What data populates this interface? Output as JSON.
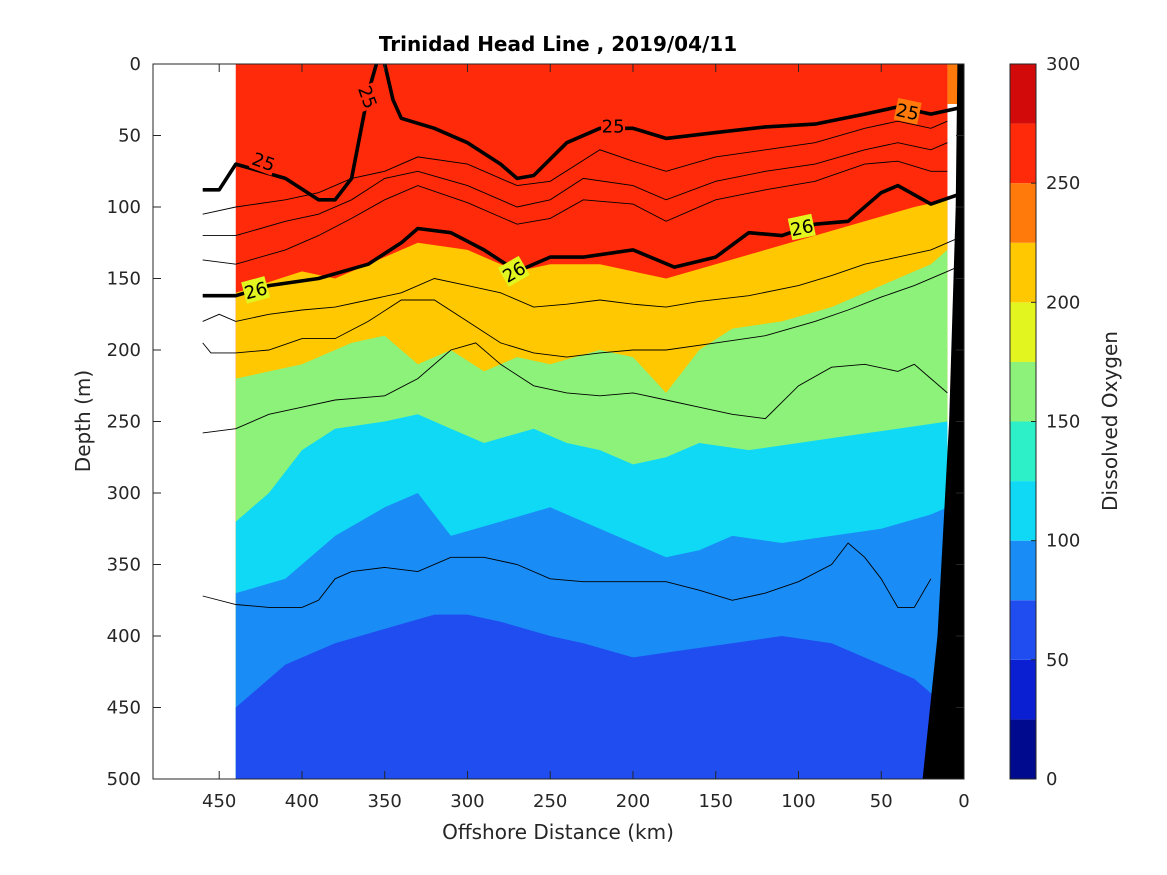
{
  "chart_data": {
    "type": "heatmap",
    "title": "Trinidad Head Line , 2019/04/11",
    "xlabel": "Offshore Distance (km)",
    "ylabel": "Depth (m)",
    "xlim": [
      490,
      0
    ],
    "ylim": [
      0,
      500
    ],
    "x_reversed": true,
    "y_reversed": true,
    "xticks": [
      "450",
      "400",
      "350",
      "300",
      "250",
      "200",
      "150",
      "100",
      "50",
      "0"
    ],
    "yticks": [
      "0",
      "50",
      "100",
      "150",
      "200",
      "250",
      "300",
      "350",
      "400",
      "450",
      "500"
    ],
    "colorbar": {
      "label": "Dissolved Oxygen",
      "range": [
        0,
        300
      ],
      "ticks": [
        "0",
        "50",
        "100",
        "150",
        "200",
        "250",
        "300"
      ],
      "levels": [
        {
          "from": 0,
          "to": 25,
          "color": "#000a8f"
        },
        {
          "from": 25,
          "to": 50,
          "color": "#0a1ed2"
        },
        {
          "from": 50,
          "to": 75,
          "color": "#1f4df0"
        },
        {
          "from": 75,
          "to": 100,
          "color": "#1a8cf5"
        },
        {
          "from": 100,
          "to": 125,
          "color": "#0fd9f5"
        },
        {
          "from": 125,
          "to": 150,
          "color": "#2ef0c8"
        },
        {
          "from": 150,
          "to": 175,
          "color": "#8cf27a"
        },
        {
          "from": 175,
          "to": 200,
          "color": "#e2f51f"
        },
        {
          "from": 200,
          "to": 225,
          "color": "#ffc800"
        },
        {
          "from": 225,
          "to": 250,
          "color": "#ff7a0a"
        },
        {
          "from": 250,
          "to": 275,
          "color": "#ff2a0a"
        },
        {
          "from": 275,
          "to": 300,
          "color": "#d20a0a"
        }
      ]
    },
    "data_x_extent": [
      440,
      10
    ],
    "field_boundaries": [
      {
        "level": 200,
        "depth_at_x": [
          [
            440,
            160
          ],
          [
            400,
            145
          ],
          [
            380,
            150
          ],
          [
            360,
            140
          ],
          [
            330,
            125
          ],
          [
            300,
            130
          ],
          [
            270,
            145
          ],
          [
            250,
            140
          ],
          [
            220,
            140
          ],
          [
            200,
            145
          ],
          [
            180,
            150
          ],
          [
            150,
            140
          ],
          [
            120,
            130
          ],
          [
            90,
            120
          ],
          [
            60,
            110
          ],
          [
            30,
            100
          ],
          [
            10,
            95
          ]
        ]
      },
      {
        "level": 150,
        "depth_at_x": [
          [
            440,
            220
          ],
          [
            400,
            210
          ],
          [
            370,
            195
          ],
          [
            350,
            190
          ],
          [
            330,
            210
          ],
          [
            310,
            200
          ],
          [
            290,
            215
          ],
          [
            270,
            205
          ],
          [
            250,
            210
          ],
          [
            220,
            200
          ],
          [
            200,
            205
          ],
          [
            180,
            230
          ],
          [
            160,
            200
          ],
          [
            140,
            185
          ],
          [
            110,
            180
          ],
          [
            80,
            170
          ],
          [
            50,
            155
          ],
          [
            20,
            140
          ],
          [
            10,
            130
          ]
        ]
      },
      {
        "level": 100,
        "depth_at_x": [
          [
            440,
            320
          ],
          [
            420,
            300
          ],
          [
            400,
            270
          ],
          [
            380,
            255
          ],
          [
            350,
            250
          ],
          [
            330,
            245
          ],
          [
            310,
            255
          ],
          [
            290,
            265
          ],
          [
            260,
            255
          ],
          [
            240,
            265
          ],
          [
            220,
            270
          ],
          [
            200,
            280
          ],
          [
            180,
            275
          ],
          [
            160,
            265
          ],
          [
            130,
            270
          ],
          [
            100,
            265
          ],
          [
            70,
            260
          ],
          [
            40,
            255
          ],
          [
            10,
            250
          ]
        ]
      },
      {
        "level": 75,
        "depth_at_x": [
          [
            440,
            370
          ],
          [
            410,
            360
          ],
          [
            380,
            330
          ],
          [
            350,
            310
          ],
          [
            330,
            300
          ],
          [
            310,
            330
          ],
          [
            280,
            320
          ],
          [
            250,
            310
          ],
          [
            230,
            320
          ],
          [
            200,
            335
          ],
          [
            180,
            345
          ],
          [
            160,
            340
          ],
          [
            140,
            330
          ],
          [
            110,
            335
          ],
          [
            80,
            330
          ],
          [
            50,
            325
          ],
          [
            20,
            315
          ],
          [
            10,
            310
          ]
        ]
      },
      {
        "level": 50,
        "depth_at_x": [
          [
            440,
            450
          ],
          [
            410,
            420
          ],
          [
            380,
            405
          ],
          [
            350,
            395
          ],
          [
            320,
            385
          ],
          [
            300,
            385
          ],
          [
            280,
            390
          ],
          [
            250,
            400
          ],
          [
            230,
            405
          ],
          [
            200,
            415
          ],
          [
            170,
            410
          ],
          [
            140,
            405
          ],
          [
            110,
            400
          ],
          [
            80,
            405
          ],
          [
            50,
            420
          ],
          [
            30,
            430
          ],
          [
            10,
            450
          ]
        ]
      }
    ],
    "isopycnals": [
      {
        "label": "25",
        "depth_at_x": [
          [
            460,
            88
          ],
          [
            450,
            88
          ],
          [
            440,
            70
          ],
          [
            410,
            80
          ],
          [
            390,
            95
          ],
          [
            380,
            95
          ],
          [
            370,
            80
          ],
          [
            365,
            50
          ],
          [
            360,
            20
          ],
          [
            355,
            0
          ]
        ]
      },
      {
        "label": "25",
        "depth_at_x": [
          [
            350,
            0
          ],
          [
            345,
            25
          ],
          [
            340,
            38
          ],
          [
            320,
            45
          ],
          [
            300,
            55
          ],
          [
            280,
            70
          ],
          [
            270,
            80
          ],
          [
            260,
            78
          ],
          [
            240,
            55
          ],
          [
            220,
            45
          ],
          [
            200,
            45
          ],
          [
            180,
            52
          ],
          [
            150,
            48
          ],
          [
            120,
            44
          ],
          [
            90,
            42
          ],
          [
            60,
            35
          ],
          [
            40,
            30
          ],
          [
            20,
            35
          ],
          [
            0,
            30
          ]
        ]
      },
      {
        "label": "26",
        "depth_at_x": [
          [
            460,
            162
          ],
          [
            440,
            162
          ],
          [
            420,
            155
          ],
          [
            390,
            150
          ],
          [
            360,
            140
          ],
          [
            340,
            125
          ],
          [
            330,
            115
          ],
          [
            310,
            118
          ],
          [
            290,
            130
          ],
          [
            270,
            145
          ],
          [
            250,
            135
          ],
          [
            230,
            135
          ],
          [
            200,
            130
          ],
          [
            175,
            142
          ],
          [
            150,
            135
          ],
          [
            130,
            118
          ],
          [
            110,
            120
          ],
          [
            90,
            112
          ],
          [
            70,
            110
          ],
          [
            50,
            90
          ],
          [
            40,
            85
          ],
          [
            20,
            98
          ],
          [
            0,
            90
          ]
        ]
      }
    ],
    "thin_contours": [
      [
        [
          460,
          105
        ],
        [
          440,
          100
        ],
        [
          410,
          95
        ],
        [
          390,
          90
        ],
        [
          370,
          80
        ],
        [
          350,
          75
        ],
        [
          330,
          65
        ],
        [
          300,
          70
        ],
        [
          270,
          85
        ],
        [
          250,
          82
        ],
        [
          220,
          60
        ],
        [
          200,
          68
        ],
        [
          180,
          75
        ],
        [
          150,
          65
        ],
        [
          120,
          60
        ],
        [
          90,
          55
        ],
        [
          60,
          45
        ],
        [
          40,
          40
        ],
        [
          20,
          45
        ],
        [
          10,
          40
        ]
      ],
      [
        [
          460,
          120
        ],
        [
          440,
          120
        ],
        [
          410,
          110
        ],
        [
          390,
          105
        ],
        [
          370,
          95
        ],
        [
          350,
          80
        ],
        [
          330,
          75
        ],
        [
          300,
          85
        ],
        [
          270,
          100
        ],
        [
          250,
          95
        ],
        [
          230,
          80
        ],
        [
          200,
          85
        ],
        [
          180,
          95
        ],
        [
          150,
          82
        ],
        [
          120,
          75
        ],
        [
          90,
          70
        ],
        [
          60,
          60
        ],
        [
          40,
          55
        ],
        [
          20,
          60
        ],
        [
          10,
          55
        ]
      ],
      [
        [
          460,
          137
        ],
        [
          440,
          140
        ],
        [
          410,
          130
        ],
        [
          390,
          120
        ],
        [
          370,
          108
        ],
        [
          350,
          95
        ],
        [
          330,
          85
        ],
        [
          300,
          97
        ],
        [
          270,
          112
        ],
        [
          250,
          108
        ],
        [
          230,
          95
        ],
        [
          200,
          98
        ],
        [
          180,
          110
        ],
        [
          150,
          95
        ],
        [
          120,
          88
        ],
        [
          90,
          82
        ],
        [
          60,
          70
        ],
        [
          40,
          68
        ],
        [
          20,
          75
        ],
        [
          10,
          75
        ]
      ],
      [
        [
          460,
          180
        ],
        [
          450,
          175
        ],
        [
          440,
          180
        ],
        [
          420,
          175
        ],
        [
          400,
          172
        ],
        [
          380,
          170
        ],
        [
          360,
          165
        ],
        [
          340,
          160
        ],
        [
          320,
          150
        ],
        [
          300,
          155
        ],
        [
          280,
          160
        ],
        [
          260,
          170
        ],
        [
          240,
          168
        ],
        [
          220,
          165
        ],
        [
          200,
          168
        ],
        [
          180,
          170
        ],
        [
          160,
          166
        ],
        [
          130,
          162
        ],
        [
          100,
          155
        ],
        [
          80,
          148
        ],
        [
          60,
          140
        ],
        [
          40,
          135
        ],
        [
          20,
          130
        ],
        [
          0,
          120
        ]
      ],
      [
        [
          460,
          195
        ],
        [
          455,
          202
        ],
        [
          440,
          202
        ],
        [
          420,
          200
        ],
        [
          400,
          192
        ],
        [
          380,
          192
        ],
        [
          360,
          180
        ],
        [
          340,
          165
        ],
        [
          320,
          165
        ],
        [
          300,
          180
        ],
        [
          280,
          195
        ],
        [
          260,
          202
        ],
        [
          240,
          205
        ],
        [
          220,
          202
        ],
        [
          200,
          200
        ],
        [
          180,
          200
        ],
        [
          150,
          195
        ],
        [
          120,
          190
        ],
        [
          90,
          180
        ],
        [
          70,
          172
        ],
        [
          50,
          163
        ],
        [
          30,
          155
        ],
        [
          10,
          145
        ],
        [
          0,
          140
        ]
      ],
      [
        [
          460,
          258
        ],
        [
          440,
          255
        ],
        [
          420,
          245
        ],
        [
          400,
          240
        ],
        [
          380,
          235
        ],
        [
          350,
          232
        ],
        [
          330,
          220
        ],
        [
          310,
          200
        ],
        [
          295,
          195
        ],
        [
          280,
          210
        ],
        [
          260,
          225
        ],
        [
          240,
          230
        ],
        [
          220,
          232
        ],
        [
          200,
          230
        ],
        [
          180,
          235
        ],
        [
          160,
          240
        ],
        [
          140,
          245
        ],
        [
          120,
          248
        ],
        [
          100,
          225
        ],
        [
          80,
          212
        ],
        [
          60,
          210
        ],
        [
          40,
          215
        ],
        [
          30,
          210
        ],
        [
          20,
          220
        ],
        [
          10,
          230
        ]
      ],
      [
        [
          460,
          372
        ],
        [
          440,
          378
        ],
        [
          420,
          380
        ],
        [
          400,
          380
        ],
        [
          390,
          375
        ],
        [
          380,
          360
        ],
        [
          370,
          355
        ],
        [
          350,
          352
        ],
        [
          330,
          355
        ],
        [
          310,
          345
        ],
        [
          290,
          345
        ],
        [
          270,
          350
        ],
        [
          250,
          360
        ],
        [
          230,
          362
        ],
        [
          200,
          362
        ],
        [
          180,
          362
        ],
        [
          160,
          368
        ],
        [
          140,
          375
        ],
        [
          120,
          370
        ],
        [
          100,
          362
        ],
        [
          80,
          350
        ],
        [
          70,
          335
        ],
        [
          60,
          345
        ],
        [
          50,
          360
        ],
        [
          40,
          380
        ],
        [
          30,
          380
        ],
        [
          20,
          360
        ]
      ]
    ],
    "contour_labels": [
      {
        "text": "25",
        "x": 360,
        "depth": 23,
        "rotate": 70
      },
      {
        "text": "25",
        "x": 423,
        "depth": 68,
        "rotate": 20
      },
      {
        "text": "25",
        "x": 212,
        "depth": 43,
        "rotate": 0
      },
      {
        "text": "25",
        "x": 34,
        "depth": 33,
        "rotate": 12
      },
      {
        "text": "26",
        "x": 428,
        "depth": 158,
        "rotate": -15
      },
      {
        "text": "26",
        "x": 272,
        "depth": 145,
        "rotate": -30
      },
      {
        "text": "26",
        "x": 98,
        "depth": 114,
        "rotate": -12
      }
    ],
    "seafloor_profile": [
      [
        0,
        0
      ],
      [
        4,
        0
      ],
      [
        5,
        100
      ],
      [
        9,
        250
      ],
      [
        16,
        400
      ],
      [
        25,
        500
      ],
      [
        0,
        500
      ]
    ]
  }
}
